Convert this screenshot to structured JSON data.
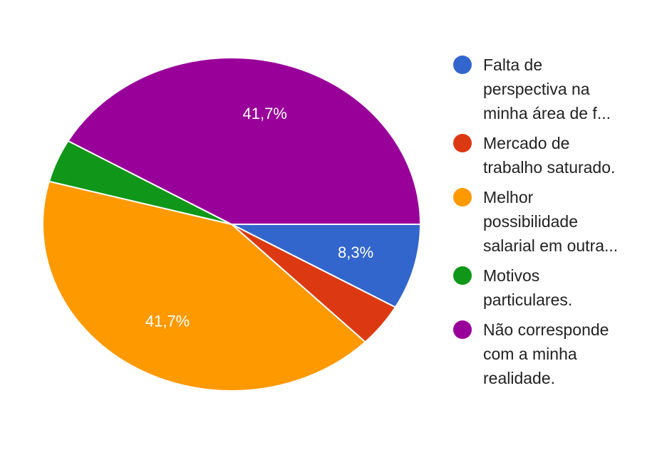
{
  "chart_data": {
    "type": "pie",
    "categories": [
      "Falta de\nperspectiva na\nminha área de f...",
      "Mercado de\ntrabalho saturado.",
      "Melhor\npossibilidade\nsalarial em outra...",
      "Motivos\nparticulares.",
      "Não corresponde\ncom a minha\nrealidade."
    ],
    "values": [
      8.3,
      4.2,
      41.7,
      4.2,
      41.7
    ],
    "value_labels": [
      "8,3%",
      null,
      "41,7%",
      null,
      "41,7%"
    ],
    "colors": [
      "#3366cc",
      "#dc3912",
      "#ff9900",
      "#109618",
      "#990099"
    ],
    "legend": "right"
  }
}
